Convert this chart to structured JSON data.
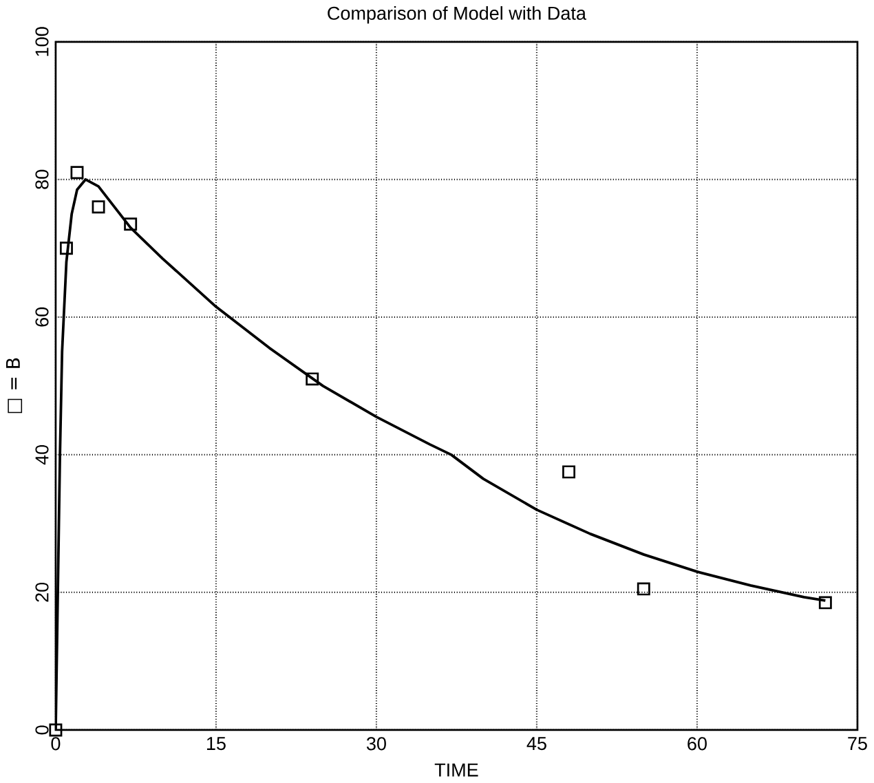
{
  "chart_data": {
    "type": "line",
    "title": "Comparison of Model with Data",
    "xlabel": "TIME",
    "ylabel": "□ = B",
    "xlim": [
      0,
      75
    ],
    "ylim": [
      0,
      100
    ],
    "xticks": [
      0,
      15,
      30,
      45,
      60,
      75
    ],
    "yticks": [
      0,
      20,
      40,
      60,
      80,
      100
    ],
    "grid": true,
    "series": [
      {
        "color": "#000000",
        "marker": "none",
        "line_style": "solid",
        "x": [
          0,
          0.2,
          0.4,
          0.6,
          1,
          1.5,
          2,
          2.8,
          4,
          5,
          7,
          10,
          15,
          20,
          25,
          30,
          35,
          37,
          40,
          45,
          50,
          55,
          60,
          65,
          70,
          72
        ],
        "values": [
          0,
          20,
          40,
          55,
          68,
          75,
          78.5,
          80,
          79,
          77,
          73,
          68.5,
          61.5,
          55.5,
          50,
          45.5,
          41.5,
          40,
          36.5,
          32,
          28.5,
          25.5,
          23,
          21,
          19.3,
          18.8
        ]
      },
      {
        "type": "scatter",
        "color": "#000000",
        "marker": "square",
        "x": [
          0,
          1,
          2,
          4,
          7,
          24,
          48,
          55,
          72
        ],
        "values": [
          0,
          70,
          81,
          76,
          73.5,
          51,
          37.5,
          20.5,
          18.5
        ]
      }
    ]
  }
}
